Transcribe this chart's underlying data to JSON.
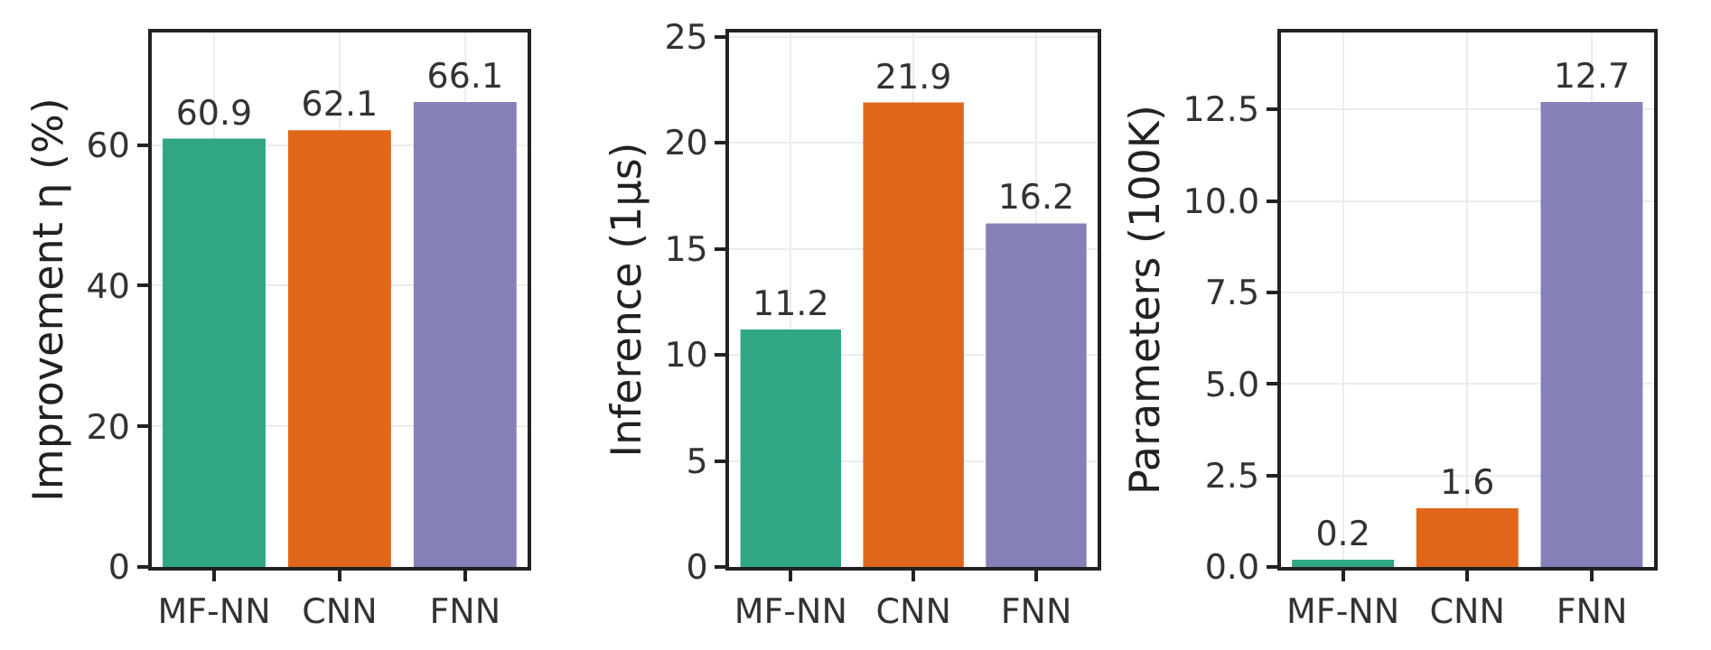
{
  "chart_data": [
    {
      "type": "bar",
      "ylabel": "Improvement η (%)",
      "categories": [
        "MF-NN",
        "CNN",
        "FNN"
      ],
      "values": [
        60.9,
        62.1,
        66.1
      ],
      "colors": [
        "#30a684",
        "#e0661a",
        "#8680b9"
      ],
      "ylim": [
        0,
        76
      ],
      "yticks": [
        0,
        20,
        40,
        60
      ],
      "grid": true,
      "data_labels": true
    },
    {
      "type": "bar",
      "ylabel": "Inference (1μs)",
      "categories": [
        "MF-NN",
        "CNN",
        "FNN"
      ],
      "values": [
        11.2,
        21.9,
        16.2
      ],
      "colors": [
        "#30a684",
        "#e0661a",
        "#8680b9"
      ],
      "ylim": [
        0,
        25.2
      ],
      "yticks": [
        0,
        5,
        10,
        15,
        20,
        25
      ],
      "grid": true,
      "data_labels": true
    },
    {
      "type": "bar",
      "ylabel": "Parameters (100K)",
      "categories": [
        "MF-NN",
        "CNN",
        "FNN"
      ],
      "values": [
        0.2,
        1.6,
        12.7
      ],
      "colors": [
        "#30a684",
        "#e0661a",
        "#8680b9"
      ],
      "ylim": [
        0,
        14.6
      ],
      "yticks": [
        {
          "value": 0,
          "label": "0.0"
        },
        {
          "value": 2.5,
          "label": "2.5"
        },
        {
          "value": 5,
          "label": "5.0"
        },
        {
          "value": 7.5,
          "label": "7.5"
        },
        {
          "value": 10,
          "label": "10.0"
        },
        {
          "value": 12.5,
          "label": "12.5"
        }
      ],
      "grid": true,
      "data_labels": true
    }
  ]
}
